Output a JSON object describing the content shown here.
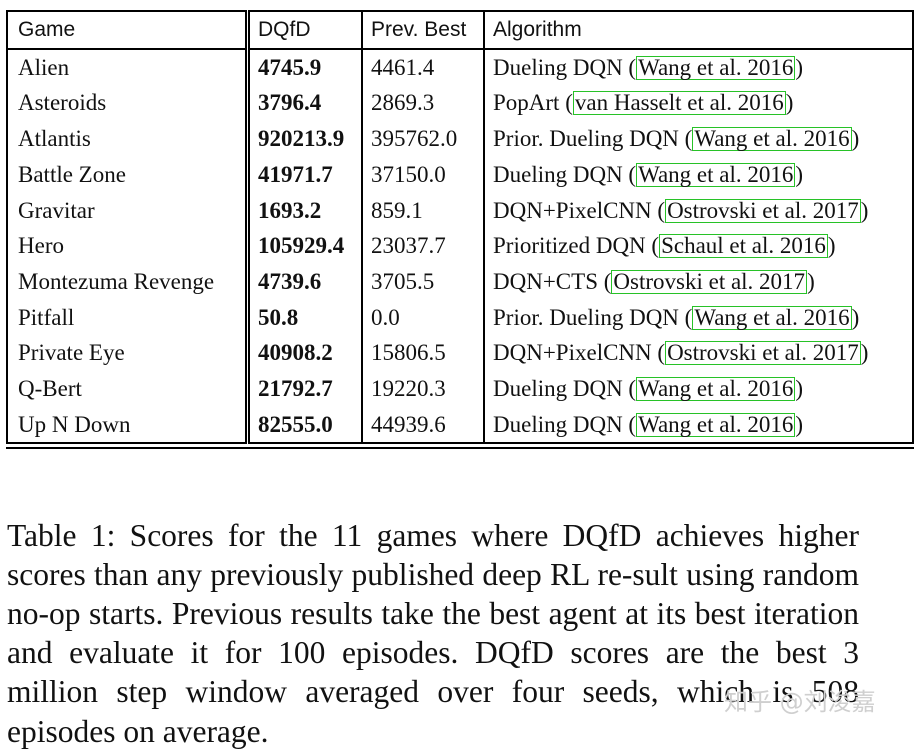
{
  "table": {
    "headers": [
      "Game",
      "DQfD",
      "Prev. Best",
      "Algorithm"
    ],
    "rows": [
      {
        "game": "Alien",
        "dqfd": "4745.9",
        "prev": "4461.4",
        "alg": "Dueling DQN (",
        "cite": "Wang et al. 2016",
        "close": ")"
      },
      {
        "game": "Asteroids",
        "dqfd": "3796.4",
        "prev": "2869.3",
        "alg": "PopArt (",
        "cite": "van Hasselt et al. 2016",
        "close": ")"
      },
      {
        "game": "Atlantis",
        "dqfd": "920213.9",
        "prev": "395762.0",
        "alg": "Prior. Dueling DQN (",
        "cite": "Wang et al. 2016",
        "close": ")"
      },
      {
        "game": "Battle Zone",
        "dqfd": "41971.7",
        "prev": "37150.0",
        "alg": "Dueling DQN (",
        "cite": "Wang et al. 2016",
        "close": ")"
      },
      {
        "game": "Gravitar",
        "dqfd": "1693.2",
        "prev": "859.1",
        "alg": "DQN+PixelCNN (",
        "cite": "Ostrovski et al. 2017",
        "close": ")"
      },
      {
        "game": "Hero",
        "dqfd": "105929.4",
        "prev": "23037.7",
        "alg": "Prioritized DQN (",
        "cite": "Schaul et al. 2016",
        "close": ")"
      },
      {
        "game": "Montezuma Revenge",
        "dqfd": "4739.6",
        "prev": "3705.5",
        "alg": "DQN+CTS (",
        "cite": "Ostrovski et al. 2017",
        "close": ")"
      },
      {
        "game": "Pitfall",
        "dqfd": "50.8",
        "prev": "0.0",
        "alg": "Prior. Dueling DQN (",
        "cite": "Wang et al. 2016",
        "close": ")"
      },
      {
        "game": "Private Eye",
        "dqfd": "40908.2",
        "prev": "15806.5",
        "alg": "DQN+PixelCNN (",
        "cite": "Ostrovski et al. 2017",
        "close": ")"
      },
      {
        "game": "Q-Bert",
        "dqfd": "21792.7",
        "prev": "19220.3",
        "alg": "Dueling DQN (",
        "cite": "Wang et al. 2016",
        "close": ")"
      },
      {
        "game": "Up N Down",
        "dqfd": "82555.0",
        "prev": "44939.6",
        "alg": "Dueling DQN (",
        "cite": "Wang et al. 2016",
        "close": ")"
      }
    ]
  },
  "caption": "Table 1: Scores for the 11 games where DQfD achieves higher scores than any previously published deep RL re-sult using random no-op starts. Previous results take the best agent at its best iteration and evaluate it for 100 episodes. DQfD scores are the best 3 million step window averaged over four seeds, which is 508 episodes on average.",
  "watermark": "知乎 @刘浚嘉",
  "colors": {
    "citation_border": "#27c227",
    "watermark": "#cfcfcf"
  }
}
